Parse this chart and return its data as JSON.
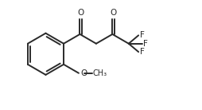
{
  "bg_color": "#ffffff",
  "line_color": "#2a2a2a",
  "line_width": 1.4,
  "font_size": 7.5,
  "figsize": [
    2.54,
    1.38
  ],
  "dpi": 100,
  "xlim": [
    0,
    10.0
  ],
  "ylim": [
    0,
    5.5
  ]
}
